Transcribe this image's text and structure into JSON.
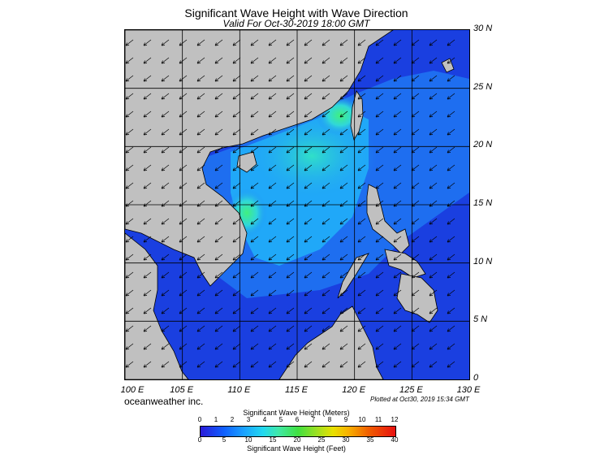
{
  "header": {
    "title": "Significant Wave Height with Wave Direction",
    "subtitle": "Valid For Oct-30-2019 18:00 GMT"
  },
  "map": {
    "lat_labels": [
      "30 N",
      "25 N",
      "20 N",
      "15 N",
      "10 N",
      "5 N",
      "0"
    ],
    "lon_labels": [
      "100 E",
      "105 E",
      "110 E",
      "115 E",
      "120 E",
      "125 E",
      "130 E"
    ],
    "land_color": "#c0c0c0",
    "sea_colors": [
      "#1a3fe0",
      "#1e6ef0",
      "#20a8f8",
      "#30e0d8",
      "#40f080"
    ],
    "arrow_icon": "wave-direction-arrow-icon",
    "dominant_direction": "southwest"
  },
  "footer": {
    "company": "oceanweather inc.",
    "plotted": "Plotted at Oct30, 2019 15:34 GMT"
  },
  "colorbar": {
    "title_top": "Significant Wave Height (Meters)",
    "meters_ticks": [
      "0",
      "1",
      "2",
      "3",
      "4",
      "5",
      "6",
      "7",
      "8",
      "9",
      "10",
      "11",
      "12"
    ],
    "feet_ticks": [
      "0",
      "5",
      "10",
      "15",
      "20",
      "25",
      "30",
      "35",
      "40"
    ],
    "title_bottom": "Significant Wave Height (Feet)"
  }
}
